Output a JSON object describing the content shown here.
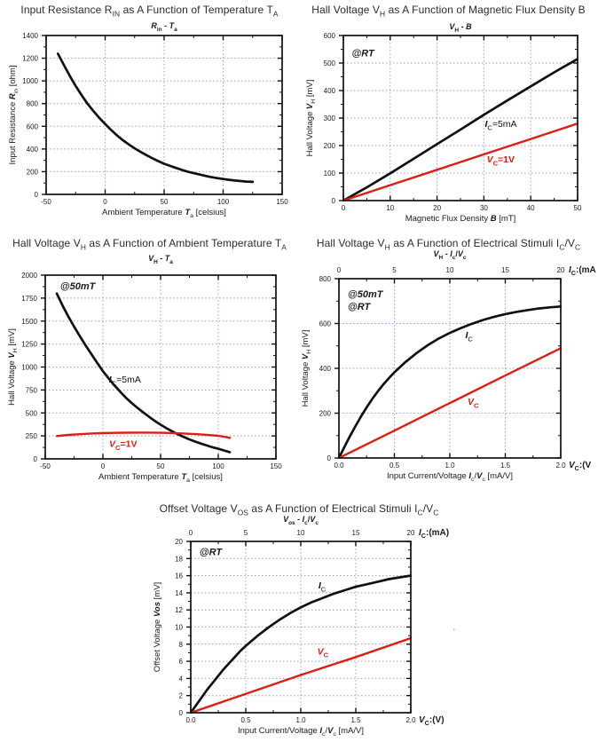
{
  "page": {
    "background": "#ffffff"
  },
  "colors": {
    "curve_black": "#111111",
    "curve_red": "#de1d13",
    "grid": "#979dce",
    "text": "#1a1a1a",
    "title": "#2b2b2b"
  },
  "stray_mark": "'",
  "chart_data": [
    {
      "type": "line",
      "title": "Input Resistance R_{IN} as A Function of Temperature T_{A}",
      "subtitle": "*R*_{in} - *T*_{a}",
      "x": {
        "label": "Ambient Temperature *T*_{a} [celsius]",
        "min": -50,
        "max": 150,
        "ticks": [
          -50,
          0,
          50,
          100,
          150
        ],
        "tick_labels": [
          "-50",
          "0",
          "50",
          "100",
          "150"
        ],
        "minor_step": 25,
        "grid": [
          0,
          50,
          100
        ]
      },
      "y": {
        "label": "Input Resistance *R*_{in} [ohm]",
        "min": 0,
        "max": 1400,
        "ticks": [
          0,
          200,
          400,
          600,
          800,
          1000,
          1200,
          1400
        ],
        "tick_labels": [
          "0",
          "200",
          "400",
          "600",
          "800",
          "1000",
          "1200",
          "1400"
        ],
        "minor_step": 100,
        "grid": [
          200,
          400,
          600,
          800,
          1000,
          1200
        ]
      },
      "annotations": [],
      "series": [
        {
          "name": "R_in",
          "color": "#111111",
          "label": null,
          "points": [
            [
              -40,
              1240
            ],
            [
              -35,
              1140
            ],
            [
              -30,
              1045
            ],
            [
              -25,
              955
            ],
            [
              -20,
              875
            ],
            [
              -15,
              800
            ],
            [
              -10,
              735
            ],
            [
              -5,
              675
            ],
            [
              0,
              620
            ],
            [
              5,
              568
            ],
            [
              10,
              520
            ],
            [
              15,
              478
            ],
            [
              20,
              440
            ],
            [
              25,
              406
            ],
            [
              30,
              375
            ],
            [
              35,
              346
            ],
            [
              40,
              318
            ],
            [
              45,
              293
            ],
            [
              50,
              270
            ],
            [
              55,
              251
            ],
            [
              60,
              233
            ],
            [
              65,
              216
            ],
            [
              70,
              200
            ],
            [
              75,
              187
            ],
            [
              80,
              175
            ],
            [
              85,
              163
            ],
            [
              90,
              152
            ],
            [
              95,
              143
            ],
            [
              100,
              135
            ],
            [
              105,
              128
            ],
            [
              110,
              122
            ],
            [
              115,
              117
            ],
            [
              120,
              113
            ],
            [
              125,
              110
            ]
          ]
        }
      ]
    },
    {
      "type": "line",
      "title": "Hall Voltage V_{H} as A Function of Magnetic Flux Density B",
      "subtitle": "*V*_{H} - *B*",
      "x": {
        "label": "Magnetic Flux Density *B* [mT]",
        "min": 0,
        "max": 50,
        "ticks": [
          0,
          10,
          20,
          30,
          40,
          50
        ],
        "tick_labels": [
          "0",
          "10",
          "20",
          "30",
          "40",
          "50"
        ],
        "minor_step": 5,
        "grid": [
          10,
          20,
          30,
          40
        ]
      },
      "y": {
        "label": "Hall Voltage *V*_{H} [mV]",
        "min": 0,
        "max": 600,
        "ticks": [
          0,
          100,
          200,
          300,
          400,
          500,
          600
        ],
        "tick_labels": [
          "0",
          "100",
          "200",
          "300",
          "400",
          "500",
          "600"
        ],
        "minor_step": 50,
        "grid": [
          100,
          200,
          300,
          400,
          500
        ]
      },
      "annotations": [
        {
          "text": "*@RT*",
          "x": 1.8,
          "y": 525
        }
      ],
      "series": [
        {
          "name": "IC=5mA",
          "color": "#111111",
          "label": {
            "text": "*I*_{C}=5mA",
            "x": 30.2,
            "y": 268
          },
          "points": [
            [
              0,
              0
            ],
            [
              5,
              48
            ],
            [
              10,
              99
            ],
            [
              15,
              152
            ],
            [
              20,
              205
            ],
            [
              25,
              258
            ],
            [
              30,
              312
            ],
            [
              35,
              364
            ],
            [
              40,
              415
            ],
            [
              45,
              466
            ],
            [
              50,
              515
            ]
          ]
        },
        {
          "name": "VC=1V",
          "color": "#de1d13",
          "label": {
            "text": "*V*_{C}=1V",
            "x": 30.6,
            "y": 138
          },
          "points": [
            [
              0,
              0
            ],
            [
              10,
              56
            ],
            [
              20,
              112
            ],
            [
              30,
              168
            ],
            [
              40,
              224
            ],
            [
              50,
              280
            ]
          ]
        }
      ]
    },
    {
      "type": "line",
      "title": "Hall Voltage V_{H} as A Function of Ambient Temperature T_{A}",
      "subtitle": "*V*_{H} - *T*_{a}",
      "x": {
        "label": "Ambient Temperature *T*_{a} [celsius]",
        "min": -50,
        "max": 150,
        "ticks": [
          -50,
          0,
          50,
          100,
          150
        ],
        "tick_labels": [
          "-50",
          "0",
          "50",
          "100",
          "150"
        ],
        "minor_step": 25,
        "grid": [
          0,
          50,
          100
        ]
      },
      "y": {
        "label": "Hall Voltage *V*_{H} [mV]",
        "min": 0,
        "max": 2000,
        "ticks": [
          0,
          250,
          500,
          750,
          1000,
          1250,
          1500,
          1750,
          2000
        ],
        "tick_labels": [
          "0",
          "250",
          "500",
          "750",
          "1000",
          "1250",
          "1500",
          "1750",
          "2000"
        ],
        "minor_step": 125,
        "grid": [
          250,
          500,
          750,
          1000,
          1250,
          1500,
          1750
        ]
      },
      "annotations": [
        {
          "text": "*@50mT*",
          "x": -37,
          "y": 1845
        }
      ],
      "series": [
        {
          "name": "IC=5mA",
          "color": "#111111",
          "label": {
            "text": "*I*_{C}=5mA",
            "x": 5.2,
            "y": 830
          },
          "points": [
            [
              -40,
              1800
            ],
            [
              -35,
              1670
            ],
            [
              -30,
              1550
            ],
            [
              -25,
              1440
            ],
            [
              -20,
              1335
            ],
            [
              -15,
              1235
            ],
            [
              -10,
              1140
            ],
            [
              -5,
              1045
            ],
            [
              0,
              955
            ],
            [
              5,
              875
            ],
            [
              10,
              800
            ],
            [
              15,
              730
            ],
            [
              20,
              665
            ],
            [
              25,
              608
            ],
            [
              30,
              555
            ],
            [
              35,
              505
            ],
            [
              40,
              458
            ],
            [
              45,
              413
            ],
            [
              50,
              372
            ],
            [
              55,
              334
            ],
            [
              60,
              300
            ],
            [
              65,
              268
            ],
            [
              70,
              239
            ],
            [
              75,
              212
            ],
            [
              80,
              188
            ],
            [
              85,
              166
            ],
            [
              90,
              146
            ],
            [
              95,
              127
            ],
            [
              100,
              110
            ],
            [
              105,
              92
            ],
            [
              110,
              72
            ]
          ]
        },
        {
          "name": "VC=1V",
          "color": "#de1d13",
          "label": {
            "text": "*V*_{C}=1V",
            "x": 5.4,
            "y": 130
          },
          "points": [
            [
              -40,
              248
            ],
            [
              -30,
              261
            ],
            [
              -20,
              269
            ],
            [
              -10,
              276
            ],
            [
              0,
              280
            ],
            [
              10,
              283
            ],
            [
              20,
              285
            ],
            [
              30,
              286
            ],
            [
              40,
              286
            ],
            [
              50,
              284
            ],
            [
              60,
              281
            ],
            [
              70,
              276
            ],
            [
              80,
              270
            ],
            [
              90,
              262
            ],
            [
              100,
              251
            ],
            [
              105,
              242
            ],
            [
              110,
              228
            ]
          ]
        }
      ]
    },
    {
      "type": "line",
      "title": "Hall Voltage V_{H} as A Function of Electrical Stimuli I_{C}/V_{C}",
      "subtitle": "*V*_{H} - *I*_{c}/*V*_{c}",
      "x2": {
        "min": 0,
        "max": 20,
        "ticks": [
          0,
          5,
          10,
          15,
          20
        ],
        "tick_labels": [
          "0",
          "5",
          "10",
          "15",
          "20"
        ],
        "minor_step": 2.5,
        "end_label": "*I*_{C}:(mA"
      },
      "x": {
        "label": "Input Current/Voltage *I*_{c}/*V*_{c} [mA/V]",
        "min": 0,
        "max": 2,
        "ticks": [
          0,
          0.5,
          1,
          1.5,
          2
        ],
        "tick_labels": [
          "0.0",
          "0.5",
          "1.0",
          "1.5",
          "2.0"
        ],
        "minor_step": 0.25,
        "grid": [
          0.5,
          1,
          1.5
        ],
        "end_label": "*V*_{C}:(V"
      },
      "y": {
        "label": "Hall Voltage *V*_{H} [mV]",
        "min": 0,
        "max": 800,
        "ticks": [
          0,
          200,
          400,
          600,
          800
        ],
        "tick_labels": [
          "0",
          "200",
          "400",
          "600",
          "800"
        ],
        "minor_step": 100,
        "grid": [
          200,
          400,
          600
        ]
      },
      "annotations": [
        {
          "text": "*@50mT*",
          "x": 0.08,
          "y": 716
        },
        {
          "text": "*@RT*",
          "x": 0.08,
          "y": 662
        }
      ],
      "series": [
        {
          "name": "IC",
          "color": "#111111",
          "label": {
            "text": "*I*_{C}",
            "x": 1.14,
            "y": 535
          },
          "points": [
            [
              0,
              0
            ],
            [
              0.05,
              50
            ],
            [
              0.1,
              98
            ],
            [
              0.15,
              143
            ],
            [
              0.2,
              186
            ],
            [
              0.25,
              226
            ],
            [
              0.3,
              263
            ],
            [
              0.35,
              297
            ],
            [
              0.4,
              328
            ],
            [
              0.45,
              356
            ],
            [
              0.5,
              382
            ],
            [
              0.6,
              428
            ],
            [
              0.7,
              468
            ],
            [
              0.8,
              503
            ],
            [
              0.9,
              533
            ],
            [
              1,
              558
            ],
            [
              1.1,
              580
            ],
            [
              1.2,
              599
            ],
            [
              1.3,
              616
            ],
            [
              1.4,
              630
            ],
            [
              1.5,
              642
            ],
            [
              1.6,
              652
            ],
            [
              1.7,
              660
            ],
            [
              1.8,
              667
            ],
            [
              1.9,
              672
            ],
            [
              2,
              676
            ]
          ]
        },
        {
          "name": "VC",
          "color": "#de1d13",
          "label": {
            "text": "*V*_{C}",
            "x": 1.16,
            "y": 237
          },
          "points": [
            [
              0,
              0
            ],
            [
              0.5,
              122
            ],
            [
              1,
              245
            ],
            [
              1.5,
              368
            ],
            [
              2,
              490
            ]
          ]
        }
      ]
    },
    {
      "type": "line",
      "title": "Offset Voltage V_{OS} as A Function of Electrical Stimuli I_{C}/V_{C}",
      "subtitle": "*V*_{os} - *I*_{c}/*V*_{c}",
      "x2": {
        "min": 0,
        "max": 20,
        "ticks": [
          0,
          5,
          10,
          15,
          20
        ],
        "tick_labels": [
          "0",
          "5",
          "10",
          "15",
          "20"
        ],
        "minor_step": 2.5,
        "end_label": "*I*_{C}:(mA)"
      },
      "x": {
        "label": "Input Current/Voltage *I*_{c}/*V*_{c} [mA/V]",
        "min": 0,
        "max": 2,
        "ticks": [
          0,
          0.5,
          1,
          1.5,
          2
        ],
        "tick_labels": [
          "0.0",
          "0.5",
          "1.0",
          "1.5",
          "2.0"
        ],
        "minor_step": 0.25,
        "grid": [
          0.5,
          1,
          1.5
        ],
        "end_label": "*V*_{C}:(V)"
      },
      "y": {
        "label": "Offset Voltage *Vos* [mV]",
        "min": 0,
        "max": 20,
        "ticks": [
          0,
          2,
          4,
          6,
          8,
          10,
          12,
          14,
          16,
          18,
          20
        ],
        "tick_labels": [
          "0",
          "2",
          "4",
          "6",
          "8",
          "10",
          "12",
          "14",
          "16",
          "18",
          "20"
        ],
        "minor_step": 1,
        "grid": [
          2,
          4,
          6,
          8,
          10,
          12,
          14,
          16,
          18
        ]
      },
      "annotations": [
        {
          "text": "*@RT*",
          "x": 0.08,
          "y": 18.4
        }
      ],
      "series": [
        {
          "name": "IC",
          "color": "#111111",
          "label": {
            "text": "*I*_{C}",
            "x": 1.16,
            "y": 14.5
          },
          "points": [
            [
              0,
              0
            ],
            [
              0.05,
              0.9
            ],
            [
              0.1,
              1.8
            ],
            [
              0.15,
              2.7
            ],
            [
              0.2,
              3.5
            ],
            [
              0.25,
              4.3
            ],
            [
              0.3,
              5.1
            ],
            [
              0.35,
              5.8
            ],
            [
              0.4,
              6.5
            ],
            [
              0.45,
              7.2
            ],
            [
              0.5,
              7.8
            ],
            [
              0.6,
              8.9
            ],
            [
              0.7,
              9.9
            ],
            [
              0.8,
              10.8
            ],
            [
              0.9,
              11.6
            ],
            [
              1,
              12.3
            ],
            [
              1.1,
              12.9
            ],
            [
              1.2,
              13.4
            ],
            [
              1.3,
              13.9
            ],
            [
              1.4,
              14.3
            ],
            [
              1.5,
              14.7
            ],
            [
              1.6,
              15
            ],
            [
              1.7,
              15.3
            ],
            [
              1.8,
              15.6
            ],
            [
              1.9,
              15.8
            ],
            [
              2,
              16
            ]
          ]
        },
        {
          "name": "VC",
          "color": "#de1d13",
          "label": {
            "text": "*V*_{C}",
            "x": 1.15,
            "y": 6.8
          },
          "points": [
            [
              0,
              0
            ],
            [
              0.5,
              2.2
            ],
            [
              1,
              4.4
            ],
            [
              1.5,
              6.5
            ],
            [
              2,
              8.7
            ]
          ]
        }
      ]
    }
  ]
}
